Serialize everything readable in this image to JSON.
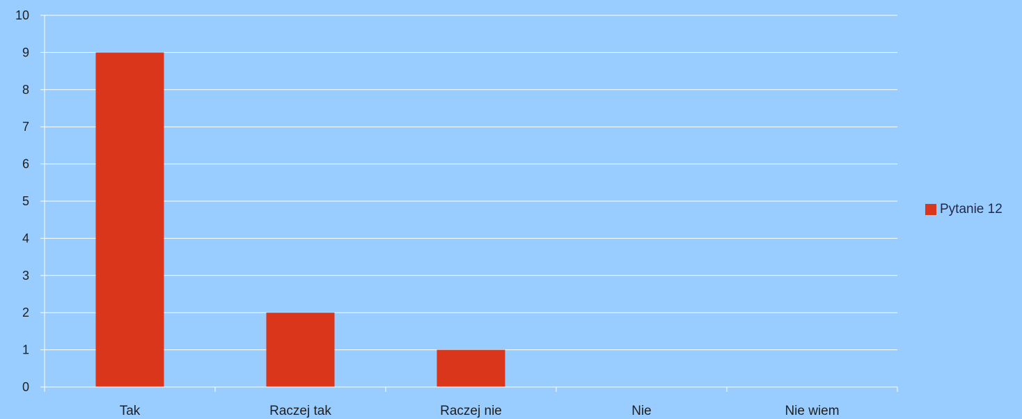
{
  "chart_data": {
    "type": "bar",
    "categories": [
      "Tak",
      "Raczej tak",
      "Raczej nie",
      "Nie",
      "Nie wiem"
    ],
    "series": [
      {
        "name": "Pytanie 12",
        "values": [
          9,
          2,
          1,
          0,
          0
        ],
        "color": "#d9361c"
      }
    ],
    "ylim": [
      0,
      10
    ],
    "yticks": [
      0,
      1,
      2,
      3,
      4,
      5,
      6,
      7,
      8,
      9,
      10
    ],
    "grid": true,
    "legend_position": "right",
    "title": "",
    "xlabel": "",
    "ylabel": ""
  },
  "colors": {
    "background": "#99ccff",
    "gridline": "#ffffff",
    "axis": "#ffffff"
  }
}
